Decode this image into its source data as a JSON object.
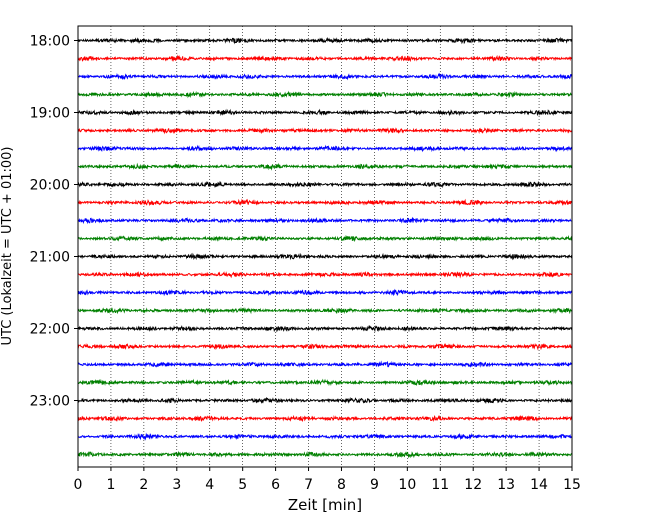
{
  "chart_data": {
    "type": "line",
    "subtype": "helicorder",
    "title": "",
    "xlabel": "Zeit  [min]",
    "ylabel": "UTC (Lokalzeit = UTC + 01:00)",
    "xlim": [
      0,
      15
    ],
    "x_ticks": [
      0,
      1,
      2,
      3,
      4,
      5,
      6,
      7,
      8,
      9,
      10,
      11,
      12,
      13,
      14,
      15
    ],
    "y_ticks": [
      "18:00",
      "19:00",
      "20:00",
      "21:00",
      "22:00",
      "23:00"
    ],
    "trace_interval_minutes": 15,
    "grid": "vertical dotted",
    "trace_colors": [
      "#000000",
      "#ff0000",
      "#0000ff",
      "#008000"
    ],
    "traces": [
      {
        "start": "18:00",
        "color": "#000000"
      },
      {
        "start": "18:15",
        "color": "#ff0000"
      },
      {
        "start": "18:30",
        "color": "#0000ff"
      },
      {
        "start": "18:45",
        "color": "#008000"
      },
      {
        "start": "19:00",
        "color": "#000000"
      },
      {
        "start": "19:15",
        "color": "#ff0000"
      },
      {
        "start": "19:30",
        "color": "#0000ff"
      },
      {
        "start": "19:45",
        "color": "#008000"
      },
      {
        "start": "20:00",
        "color": "#000000"
      },
      {
        "start": "20:15",
        "color": "#ff0000"
      },
      {
        "start": "20:30",
        "color": "#0000ff"
      },
      {
        "start": "20:45",
        "color": "#008000"
      },
      {
        "start": "21:00",
        "color": "#000000"
      },
      {
        "start": "21:15",
        "color": "#ff0000"
      },
      {
        "start": "21:30",
        "color": "#0000ff"
      },
      {
        "start": "21:45",
        "color": "#008000"
      },
      {
        "start": "22:00",
        "color": "#000000"
      },
      {
        "start": "22:15",
        "color": "#ff0000"
      },
      {
        "start": "22:30",
        "color": "#0000ff"
      },
      {
        "start": "22:45",
        "color": "#008000"
      },
      {
        "start": "23:00",
        "color": "#000000"
      },
      {
        "start": "23:15",
        "color": "#ff0000"
      },
      {
        "start": "23:30",
        "color": "#0000ff"
      },
      {
        "start": "23:45",
        "color": "#008000"
      }
    ]
  }
}
